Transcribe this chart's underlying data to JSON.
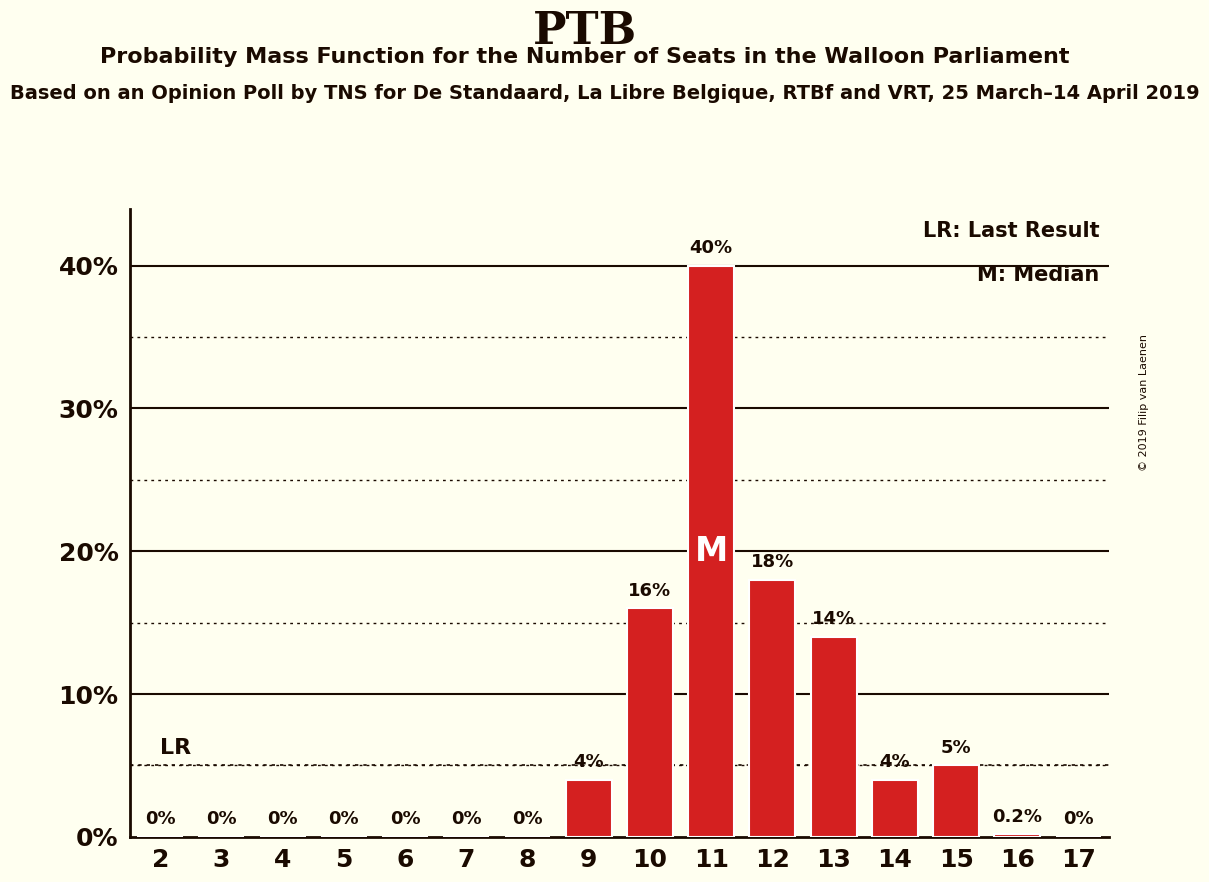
{
  "title": "PTB",
  "subtitle1": "Probability Mass Function for the Number of Seats in the Walloon Parliament",
  "subtitle2": "Based on an Opinion Poll by TNS for De Standaard, La Libre Belgique, RTBf and VRT, 25 March–14 April 2019",
  "subtitle2_visible": "n an Opinion Poll by TNS for De Standaard, La Libre Belgique, RTBf and VRT, 25 March–14 Ap",
  "seats": [
    2,
    3,
    4,
    5,
    6,
    7,
    8,
    9,
    10,
    11,
    12,
    13,
    14,
    15,
    16,
    17
  ],
  "values": [
    0,
    0,
    0,
    0,
    0,
    0,
    0,
    4,
    16,
    40,
    18,
    14,
    4,
    5,
    0.2,
    0
  ],
  "bar_color": "#d42020",
  "bg_color": "#fffff0",
  "text_color": "#1a0a00",
  "lr_value": 5,
  "lr_label": "LR",
  "median_seat": 11,
  "median_label": "M",
  "legend_lr": "LR: Last Result",
  "legend_m": "M: Median",
  "yticks_major": [
    0,
    10,
    20,
    30,
    40
  ],
  "yticks_minor": [
    5,
    15,
    25,
    35
  ],
  "ylim": [
    0,
    44
  ],
  "copyright": "© 2019 Filip van Laenen",
  "bar_width": 0.75
}
